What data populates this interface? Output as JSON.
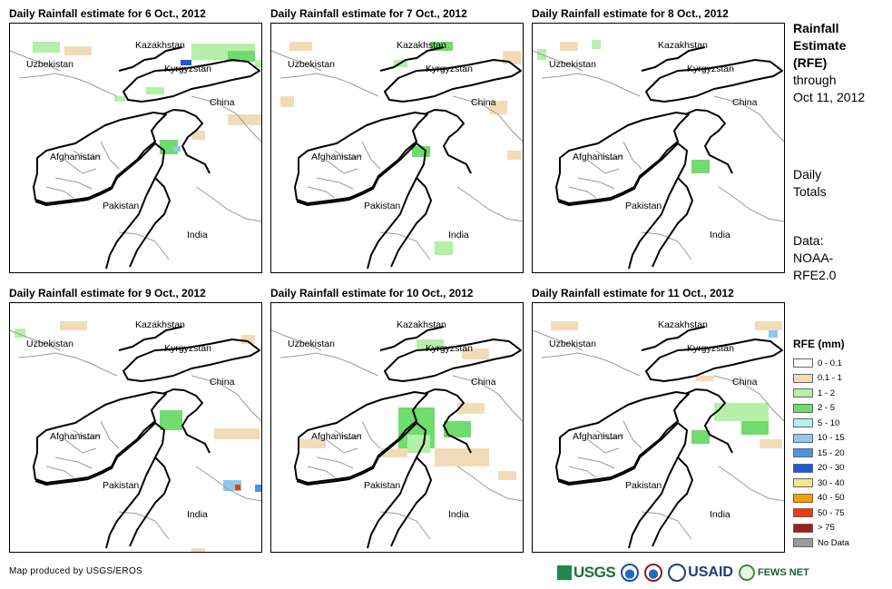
{
  "panels": [
    {
      "title": "Daily Rainfall estimate for 6 Oct., 2012"
    },
    {
      "title": "Daily Rainfall estimate for 7 Oct., 2012"
    },
    {
      "title": "Daily Rainfall estimate for 8 Oct., 2012"
    },
    {
      "title": "Daily Rainfall estimate for 9 Oct., 2012"
    },
    {
      "title": "Daily Rainfall estimate for 10 Oct., 2012"
    },
    {
      "title": "Daily Rainfall estimate for 11 Oct., 2012"
    }
  ],
  "countries": {
    "kazakhstan": "Kazakhstan",
    "uzbekistan": "Uzbekistan",
    "kyrgyzstan": "Kyrgyzstan",
    "china": "China",
    "afghanistan": "Afghanistan",
    "pakistan": "Pakistan",
    "india": "India"
  },
  "side": {
    "title_bold": [
      "Rainfall",
      "Estimate",
      "(RFE)"
    ],
    "title_normal": [
      "through",
      "Oct 11, 2012"
    ],
    "totals": [
      "Daily",
      "Totals"
    ],
    "data": [
      "Data:",
      "NOAA-",
      "RFE2.0"
    ]
  },
  "legend": {
    "title": "RFE (mm)",
    "items": [
      {
        "label": "0 - 0.1",
        "color": "#ffffff"
      },
      {
        "label": "0.1 - 1",
        "color": "#f2dcb8"
      },
      {
        "label": "1 - 2",
        "color": "#b4f0a8"
      },
      {
        "label": "2 - 5",
        "color": "#6edc6e"
      },
      {
        "label": "5 - 10",
        "color": "#b4f2f0"
      },
      {
        "label": "10 - 15",
        "color": "#8fc8f0"
      },
      {
        "label": "15 - 20",
        "color": "#4a96e6"
      },
      {
        "label": "20 - 30",
        "color": "#1e5ad2"
      },
      {
        "label": "30 - 40",
        "color": "#f5e68c"
      },
      {
        "label": "40 - 50",
        "color": "#f5a000"
      },
      {
        "label": "50 - 75",
        "color": "#e63c14"
      },
      {
        "label": "> 75",
        "color": "#a01e1e"
      },
      {
        "label": "No Data",
        "color": "#9a9a9a"
      }
    ]
  },
  "footer": {
    "credit": "Map produced by USGS/EROS",
    "logos": {
      "usgs": "USGS",
      "usaid": "USAID",
      "fews": "FEWS NET"
    }
  }
}
